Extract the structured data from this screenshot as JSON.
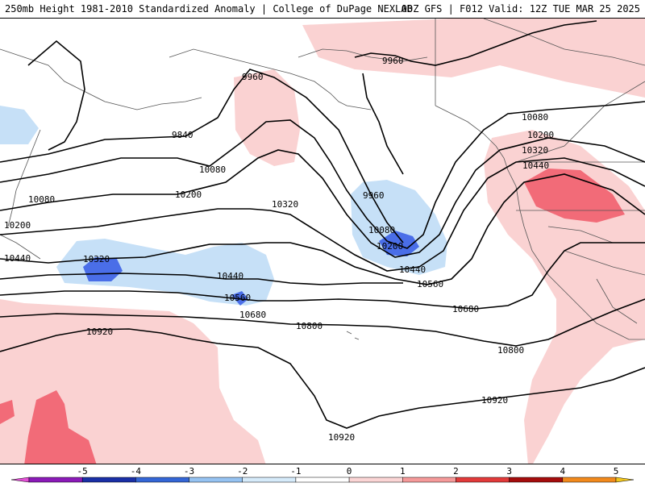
{
  "header": {
    "title_left": "250mb Height 1981-2010 Standardized Anomaly | College of DuPage NEXLAB",
    "title_right": "00Z GFS | F012 Valid: 12Z TUE MAR 25 2025"
  },
  "contour_labels": [
    "9840",
    "9960",
    "9960",
    "9960",
    "10080",
    "10080",
    "10080",
    "10080",
    "10200",
    "10200",
    "10200",
    "10200",
    "10320",
    "10320",
    "10320",
    "10440",
    "10440",
    "10440",
    "10440",
    "10560",
    "10560",
    "10680",
    "10680",
    "10800",
    "10800",
    "10920",
    "10920",
    "10920"
  ],
  "colors": {
    "anomaly_neg1": "#c6e0f7",
    "anomaly_neg2": "#4a6ee8",
    "anomaly_pos1": "#fad2d2",
    "anomaly_pos2": "#f26b78",
    "land_outline": "#555555",
    "contour": "#000000"
  },
  "colorbar": {
    "ticks": [
      "-5",
      "-4",
      "-3",
      "-2",
      "-1",
      "0",
      "1",
      "2",
      "3",
      "4",
      "5"
    ],
    "colors": [
      "#e34fd6",
      "#8b1ab8",
      "#1a2fa6",
      "#3466d6",
      "#96c3f2",
      "#d6ebfa",
      "#ffffff",
      "#fbd5d5",
      "#f59a9a",
      "#e23a3a",
      "#a50d0d",
      "#f28a1c",
      "#f2c61c"
    ]
  }
}
